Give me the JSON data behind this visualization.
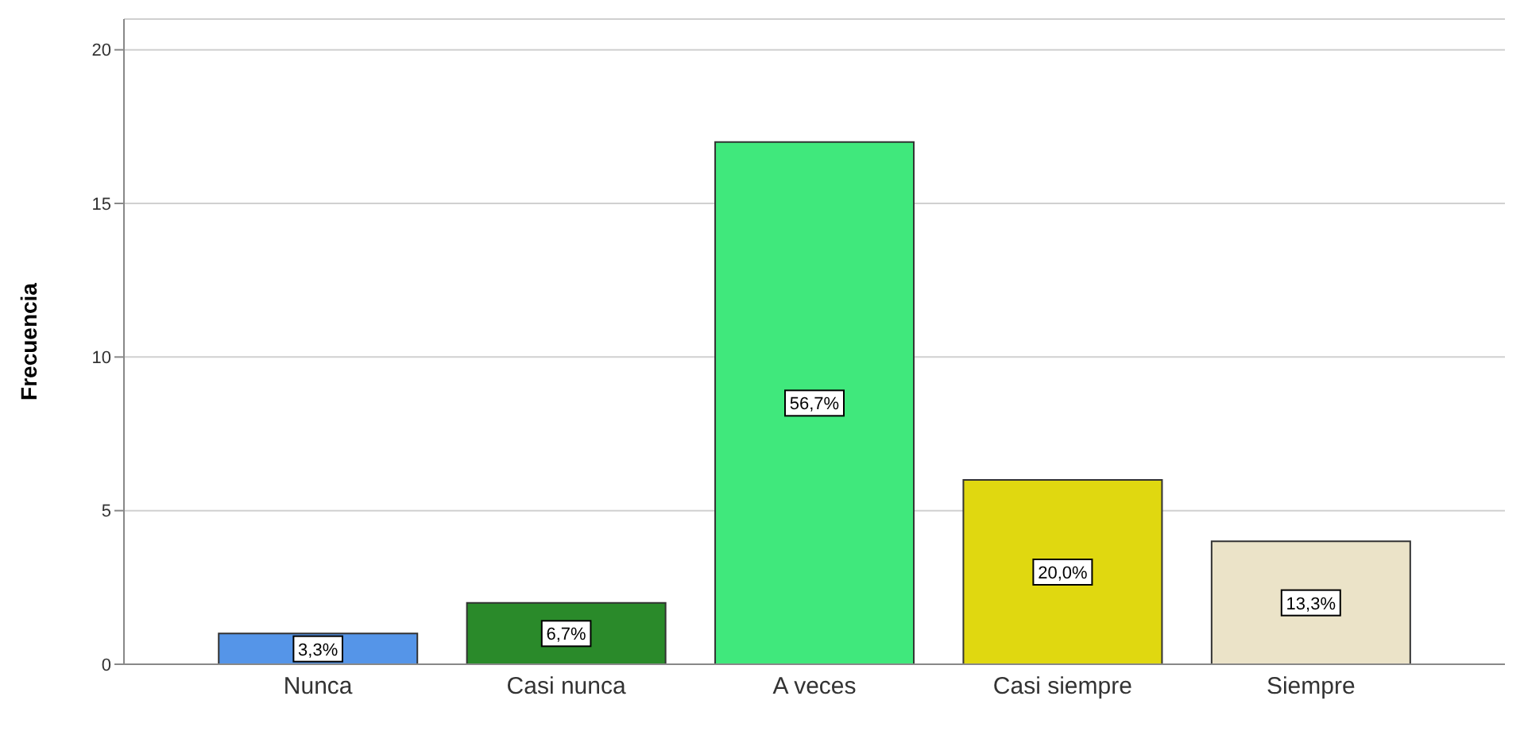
{
  "chart_data": {
    "type": "bar",
    "ylabel": "Frecuencia",
    "categories": [
      "Nunca",
      "Casi nunca",
      "A veces",
      "Casi siempre",
      "Siempre"
    ],
    "values": [
      1,
      2,
      17,
      6,
      4
    ],
    "colors": [
      "#5595e8",
      "#2a8a2a",
      "#40e87c",
      "#e0d810",
      "#ebe3c8"
    ],
    "annotations": [
      {
        "text": "3,3%",
        "x": "Nunca",
        "y": 0.5
      },
      {
        "text": "6,7%",
        "x": "Casi nunca",
        "y": 1
      },
      {
        "text": "56,7%",
        "x": "A veces",
        "y": 8.5
      },
      {
        "text": "20,0%",
        "x": "Casi siempre",
        "y": 3
      },
      {
        "text": "13,3%",
        "x": "Siempre",
        "y": 2
      }
    ],
    "ylim": [
      0,
      21
    ],
    "yticks": [
      0,
      5,
      10,
      15,
      20
    ],
    "grid": "y",
    "legend": false
  }
}
